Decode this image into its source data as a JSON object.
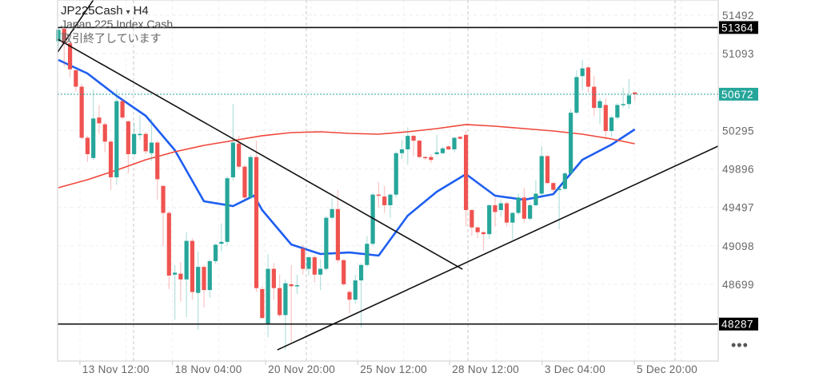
{
  "header": {
    "symbol": "JP225Cash",
    "symbol_caret": "▾",
    "timeframe": "H4",
    "description": "Japan 225 Index Cash",
    "status": "取引終了しています"
  },
  "more_button": "•••",
  "colors": {
    "up": "#26a69a",
    "down": "#ef5350",
    "ma_fast": "#1e5ef0",
    "ma_slow": "#f0463a",
    "trendline": "#111111",
    "last_price": "#26a69a"
  },
  "chart_data": {
    "type": "candlestick",
    "symbol": "JP225Cash",
    "timeframe": "H4",
    "ylim": [
      48000,
      51650
    ],
    "grid": true,
    "y_ticks": [
      51492,
      51093,
      50295,
      49896,
      49497,
      49098,
      48699
    ],
    "x_ticks": [
      {
        "label": "13 Nov 12:00",
        "bar": 3.7
      },
      {
        "label": "18 Nov 04:00",
        "bar": 19.6
      },
      {
        "label": "20 Nov 20:00",
        "bar": 35.6
      },
      {
        "label": "25 Nov 12:00",
        "bar": 51.4
      },
      {
        "label": "28 Nov 12:00",
        "bar": 67.2
      },
      {
        "label": "3 Dec 04:00",
        "bar": 83.1
      },
      {
        "label": "5 Dec 20:00",
        "bar": 98.9
      }
    ],
    "candles_ohlc": [
      [
        51220,
        51370,
        51150,
        51340
      ],
      [
        51350,
        51380,
        50960,
        51200
      ],
      [
        51200,
        51220,
        50850,
        50930
      ],
      [
        50920,
        50930,
        50700,
        50750
      ],
      [
        50750,
        50780,
        50200,
        50220
      ],
      [
        50220,
        50240,
        49970,
        50050
      ],
      [
        50010,
        50720,
        49990,
        50420
      ],
      [
        50430,
        50560,
        50260,
        50370
      ],
      [
        50360,
        50380,
        50070,
        50180
      ],
      [
        50180,
        50200,
        49680,
        49810
      ],
      [
        49810,
        50720,
        49730,
        50600
      ],
      [
        50600,
        50620,
        50410,
        50430
      ],
      [
        50390,
        50400,
        49850,
        50050
      ],
      [
        50050,
        50380,
        50030,
        50260
      ],
      [
        50250,
        50450,
        50200,
        50260
      ],
      [
        50260,
        50280,
        50050,
        50080
      ],
      [
        50060,
        50420,
        49980,
        50170
      ],
      [
        50170,
        50190,
        49580,
        49790
      ],
      [
        49720,
        49730,
        49100,
        49440
      ],
      [
        49440,
        49460,
        48650,
        48790
      ],
      [
        48800,
        48900,
        48330,
        48820
      ],
      [
        48810,
        48930,
        48520,
        48750
      ],
      [
        48750,
        49240,
        48360,
        49150
      ],
      [
        49150,
        49180,
        48540,
        48620
      ],
      [
        48610,
        49040,
        48230,
        48880
      ],
      [
        48880,
        48900,
        48460,
        48640
      ],
      [
        48640,
        48960,
        48560,
        48940
      ],
      [
        48940,
        49120,
        48910,
        49110
      ],
      [
        49120,
        49330,
        49040,
        49140
      ],
      [
        49140,
        49820,
        49100,
        49800
      ],
      [
        49810,
        50570,
        49780,
        50170
      ],
      [
        50160,
        50240,
        49900,
        49920
      ],
      [
        49920,
        49940,
        49580,
        49600
      ],
      [
        49600,
        50040,
        49580,
        50020
      ],
      [
        50020,
        50190,
        48620,
        48660
      ],
      [
        48650,
        48680,
        48340,
        48350
      ],
      [
        48290,
        49010,
        48150,
        48860
      ],
      [
        48860,
        48920,
        48540,
        48660
      ],
      [
        48660,
        48800,
        48360,
        48380
      ],
      [
        48380,
        48750,
        48020,
        48710
      ],
      [
        48700,
        48900,
        48100,
        48680
      ],
      [
        48680,
        48800,
        48600,
        48690
      ],
      [
        49070,
        49110,
        48800,
        48860
      ],
      [
        48860,
        49000,
        48790,
        48980
      ],
      [
        48980,
        49000,
        48720,
        48800
      ],
      [
        48800,
        48960,
        48640,
        48860
      ],
      [
        48860,
        49410,
        48840,
        49390
      ],
      [
        49390,
        49590,
        49370,
        49480
      ],
      [
        49480,
        49680,
        48920,
        48950
      ],
      [
        48950,
        48960,
        48680,
        48700
      ],
      [
        48620,
        48640,
        48400,
        48540
      ],
      [
        48540,
        48800,
        48500,
        48740
      ],
      [
        48740,
        48920,
        48250,
        48900
      ],
      [
        48900,
        49200,
        48880,
        49120
      ],
      [
        49120,
        49650,
        49100,
        49630
      ],
      [
        49630,
        49760,
        49500,
        49620
      ],
      [
        49610,
        49720,
        49440,
        49520
      ],
      [
        49520,
        49640,
        49390,
        49630
      ],
      [
        49630,
        50080,
        49600,
        50060
      ],
      [
        50060,
        50200,
        50000,
        50100
      ],
      [
        50100,
        50330,
        49940,
        50240
      ],
      [
        50240,
        50250,
        50030,
        50190
      ],
      [
        50190,
        50200,
        50010,
        50020
      ],
      [
        50020,
        50030,
        49990,
        50010
      ],
      [
        50020,
        50050,
        49960,
        49990
      ],
      [
        50050,
        50250,
        50030,
        50070
      ],
      [
        50060,
        50130,
        50050,
        50110
      ],
      [
        50130,
        50140,
        50090,
        50100
      ],
      [
        50100,
        50230,
        50070,
        50220
      ],
      [
        50230,
        50240,
        50200,
        50210
      ],
      [
        50250,
        50290,
        49300,
        49470
      ],
      [
        49470,
        49480,
        49200,
        49290
      ],
      [
        49290,
        49300,
        49180,
        49240
      ],
      [
        49240,
        49250,
        49050,
        49220
      ],
      [
        49220,
        49530,
        49170,
        49520
      ],
      [
        49520,
        49600,
        49300,
        49450
      ],
      [
        49470,
        49580,
        49400,
        49540
      ],
      [
        49540,
        49560,
        49300,
        49340
      ],
      [
        49340,
        49450,
        49160,
        49440
      ],
      [
        49440,
        49640,
        49420,
        49600
      ],
      [
        49600,
        49700,
        49340,
        49380
      ],
      [
        49380,
        49550,
        49360,
        49520
      ],
      [
        49520,
        49780,
        49510,
        49640
      ],
      [
        49640,
        50130,
        49620,
        50030
      ],
      [
        50030,
        50040,
        49740,
        49750
      ],
      [
        49750,
        49760,
        49650,
        49680
      ],
      [
        49680,
        49700,
        49270,
        49690
      ],
      [
        49690,
        49870,
        49680,
        49850
      ],
      [
        49850,
        50520,
        49840,
        50480
      ],
      [
        50480,
        50920,
        50460,
        50850
      ],
      [
        50860,
        51030,
        50710,
        50940
      ],
      [
        50950,
        50960,
        50690,
        50750
      ],
      [
        50750,
        50860,
        50450,
        50530
      ],
      [
        50530,
        50630,
        50360,
        50600
      ],
      [
        50560,
        50630,
        50200,
        50290
      ],
      [
        50290,
        50450,
        50230,
        50430
      ],
      [
        50430,
        50580,
        50410,
        50560
      ],
      [
        50560,
        50740,
        50530,
        50570
      ],
      [
        50570,
        50830,
        50520,
        50660
      ],
      [
        50690,
        50700,
        50600,
        50672
      ]
    ],
    "moving_averages": [
      {
        "color": "#1e5ef0",
        "points": [
          [
            0,
            51028
          ],
          [
            5,
            50887
          ],
          [
            10,
            50655
          ],
          [
            15,
            50448
          ],
          [
            20,
            50091
          ],
          [
            25,
            49561
          ],
          [
            30,
            49511
          ],
          [
            33.6,
            49620
          ],
          [
            35,
            49470
          ],
          [
            40,
            49113
          ],
          [
            45,
            49014
          ],
          [
            50,
            49030
          ],
          [
            55,
            48997
          ],
          [
            60,
            49412
          ],
          [
            65,
            49660
          ],
          [
            70,
            49843
          ],
          [
            75,
            49619
          ],
          [
            80,
            49577
          ],
          [
            85,
            49635
          ],
          [
            90,
            49992
          ],
          [
            95,
            50149
          ],
          [
            99,
            50307
          ]
        ]
      },
      {
        "color": "#f0463a",
        "points": [
          [
            0,
            49702
          ],
          [
            5,
            49785
          ],
          [
            10,
            49884
          ],
          [
            15,
            49992
          ],
          [
            20,
            50075
          ],
          [
            25,
            50141
          ],
          [
            30,
            50191
          ],
          [
            35,
            50241
          ],
          [
            40,
            50274
          ],
          [
            45,
            50282
          ],
          [
            50,
            50265
          ],
          [
            55,
            50257
          ],
          [
            60,
            50282
          ],
          [
            65,
            50315
          ],
          [
            70,
            50357
          ],
          [
            75,
            50340
          ],
          [
            80,
            50315
          ],
          [
            85,
            50290
          ],
          [
            90,
            50257
          ],
          [
            95,
            50207
          ],
          [
            99,
            50158
          ]
        ]
      }
    ],
    "trendlines": [
      {
        "from": {
          "bar": -0.1,
          "price": 51243
        },
        "to": {
          "bar": 69.4,
          "price": 48856
        }
      },
      {
        "from": {
          "bar": -0.1,
          "price": 51111
        },
        "to": {
          "bar": 6.0,
          "price": 51649
        }
      },
      {
        "from": {
          "bar": 37.6,
          "price": 48019
        },
        "to": {
          "bar": 113.3,
          "price": 50133
        }
      }
    ],
    "horizontal_lines": [
      {
        "price": 51364,
        "label": "51364"
      },
      {
        "price": 48287,
        "label": "48287"
      }
    ],
    "last_price": {
      "price": 50672,
      "label": "50672"
    }
  }
}
